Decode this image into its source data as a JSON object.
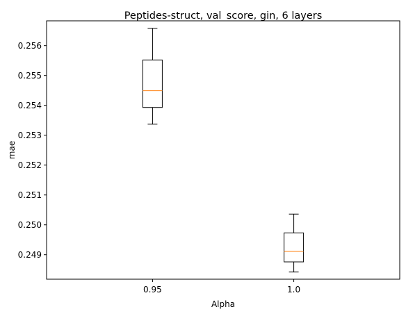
{
  "chart_data": {
    "type": "boxplot",
    "title": "Peptides-struct, val_score, gin, 6 layers",
    "xlabel": "Alpha",
    "ylabel": "mae",
    "categories": [
      "0.95",
      "1.0"
    ],
    "boxes": [
      {
        "category": "0.95",
        "whisker_low": 0.25337,
        "q1": 0.25393,
        "median": 0.25449,
        "q3": 0.25552,
        "whisker_high": 0.25658
      },
      {
        "category": "1.0",
        "whisker_low": 0.24842,
        "q1": 0.24876,
        "median": 0.24911,
        "q3": 0.24973,
        "whisker_high": 0.25036
      }
    ],
    "yticks": [
      "0.249",
      "0.250",
      "0.251",
      "0.252",
      "0.253",
      "0.254",
      "0.255",
      "0.256"
    ],
    "ylim": [
      0.24818,
      0.25683
    ],
    "grid": false,
    "colors": {
      "box": "#000000",
      "median": "#ff7f0e"
    }
  }
}
